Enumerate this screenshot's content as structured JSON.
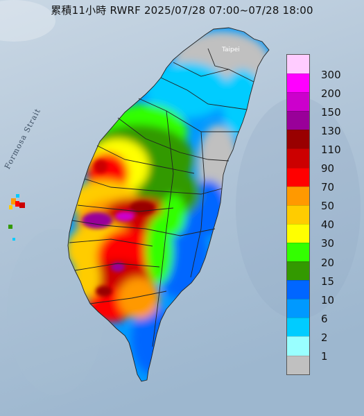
{
  "title": "累積11小時 RWRF 2025/07/28 07:00~07/28 18:00",
  "strait_label": "Formosa Strait",
  "city_label": "Taipei",
  "legend": {
    "levels": [
      {
        "label": "300",
        "color": "#ffccff"
      },
      {
        "label": "200",
        "color": "#ff00ff"
      },
      {
        "label": "150",
        "color": "#cc00cc"
      },
      {
        "label": "130",
        "color": "#990099"
      },
      {
        "label": "110",
        "color": "#990000"
      },
      {
        "label": "90",
        "color": "#cc0000"
      },
      {
        "label": "70",
        "color": "#ff0000"
      },
      {
        "label": "50",
        "color": "#ff9900"
      },
      {
        "label": "40",
        "color": "#ffcc00"
      },
      {
        "label": "30",
        "color": "#ffff00"
      },
      {
        "label": "20",
        "color": "#33ff00"
      },
      {
        "label": "15",
        "color": "#339900"
      },
      {
        "label": "10",
        "color": "#0066ff"
      },
      {
        "label": "6",
        "color": "#0099ff"
      },
      {
        "label": "2",
        "color": "#00ccff"
      },
      {
        "label": "1",
        "color": "#99ffff"
      },
      {
        "label": "",
        "color": "#c0c0c0"
      }
    ]
  },
  "colors": {
    "sea_top": "#c5d3e1",
    "sea_bottom": "#9fb8d0",
    "boundary": "#222222"
  }
}
